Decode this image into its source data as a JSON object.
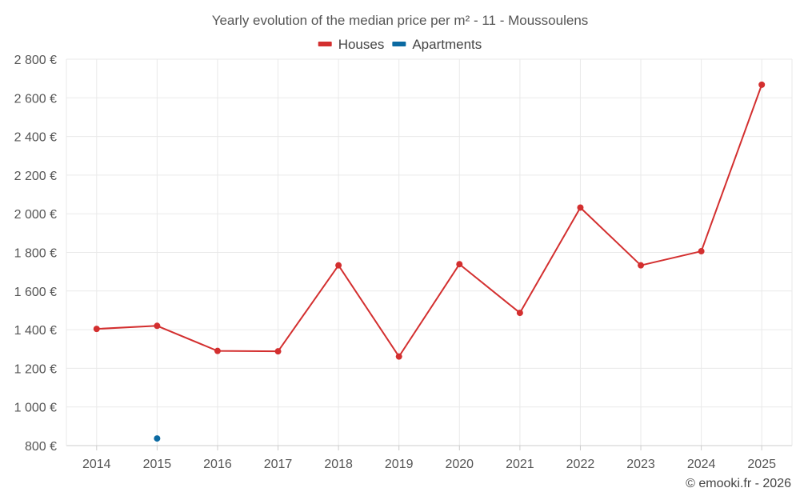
{
  "chart_data": {
    "type": "line",
    "title": "Yearly evolution of the median price per m² - 11 - Moussoulens",
    "categories": [
      "2014",
      "2015",
      "2016",
      "2017",
      "2018",
      "2019",
      "2020",
      "2021",
      "2022",
      "2023",
      "2024",
      "2025"
    ],
    "series": [
      {
        "name": "Houses",
        "color": "#d32f2f",
        "values": [
          1404,
          1420,
          1290,
          1288,
          1733,
          1261,
          1739,
          1487,
          2032,
          1733,
          1806,
          2668
        ]
      },
      {
        "name": "Apartments",
        "color": "#0b6aa2",
        "values": [
          null,
          837,
          null,
          null,
          null,
          null,
          null,
          null,
          null,
          null,
          null,
          null
        ]
      }
    ],
    "ylim": [
      800,
      2800
    ],
    "yticks": [
      800,
      1000,
      1200,
      1400,
      1600,
      1800,
      2000,
      2200,
      2400,
      2600,
      2800
    ],
    "ytick_labels": [
      "800 €",
      "1 000 €",
      "1 200 €",
      "1 400 €",
      "1 600 €",
      "1 800 €",
      "2 000 €",
      "2 200 €",
      "2 400 €",
      "2 600 €",
      "2 800 €"
    ],
    "xlabel": "",
    "ylabel": "",
    "grid": true,
    "legend_position": "top-center"
  },
  "credit": "© emooki.fr - 2026"
}
